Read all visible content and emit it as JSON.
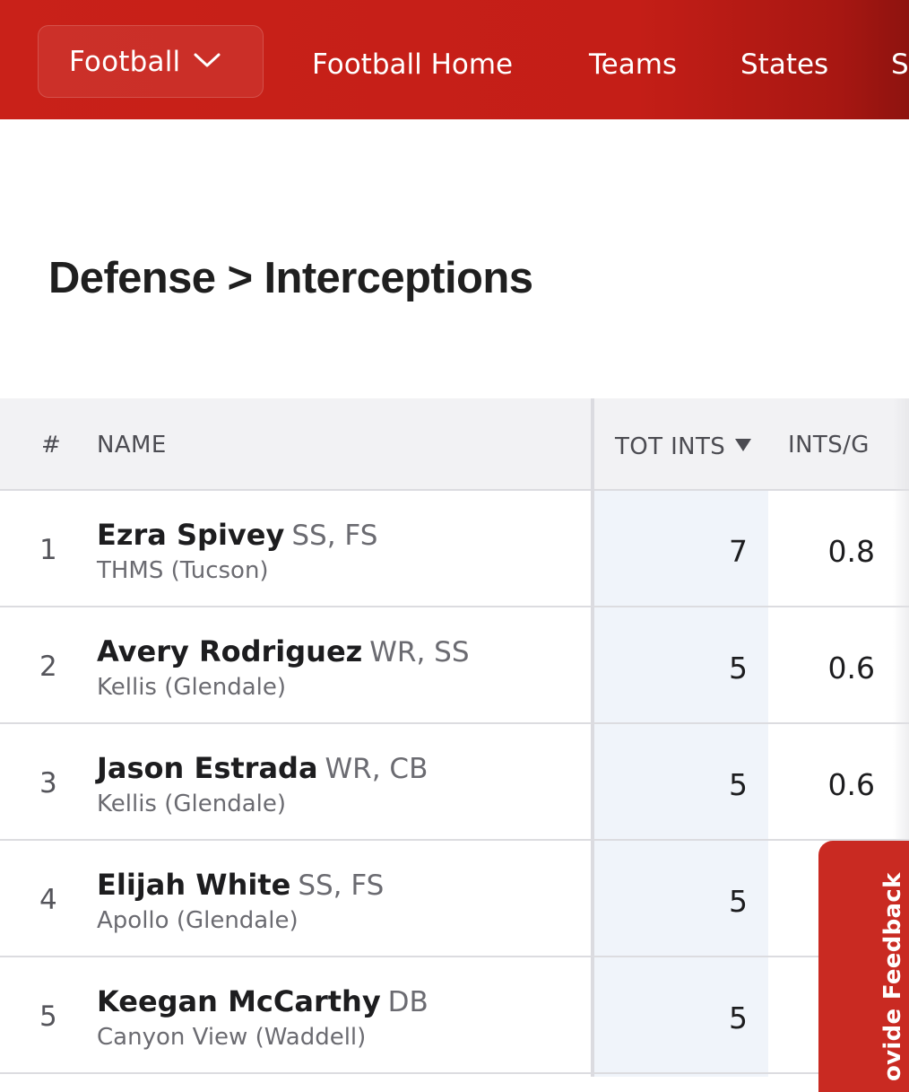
{
  "nav": {
    "sport_select": "Football",
    "links": [
      "Football Home",
      "Teams",
      "States",
      "S"
    ]
  },
  "page": {
    "title": "Defense > Interceptions"
  },
  "table": {
    "columns": {
      "rank": "#",
      "name": "NAME",
      "total_ints": "TOT INTS",
      "ints_per_game": "INTS/G"
    },
    "sort": {
      "column": "TOT INTS",
      "direction": "descending"
    },
    "rows": [
      {
        "rank": "1",
        "name": "Ezra Spivey",
        "positions": "SS, FS",
        "school": "THMS (Tucson)",
        "total_ints": "7",
        "ints_per_game": "0.8"
      },
      {
        "rank": "2",
        "name": "Avery Rodriguez",
        "positions": "WR, SS",
        "school": "Kellis (Glendale)",
        "total_ints": "5",
        "ints_per_game": "0.6"
      },
      {
        "rank": "3",
        "name": "Jason Estrada",
        "positions": "WR, CB",
        "school": "Kellis (Glendale)",
        "total_ints": "5",
        "ints_per_game": "0.6"
      },
      {
        "rank": "4",
        "name": "Elijah White",
        "positions": "SS, FS",
        "school": "Apollo (Glendale)",
        "total_ints": "5",
        "ints_per_game": ""
      },
      {
        "rank": "5",
        "name": "Keegan McCarthy",
        "positions": "DB",
        "school": "Canyon View (Waddell)",
        "total_ints": "5",
        "ints_per_game": ""
      }
    ]
  },
  "feedback": {
    "label": "ovide Feedback"
  },
  "colors": {
    "nav_red": "#c92119",
    "feedback_red": "#c92a22",
    "header_bg": "#f2f2f4",
    "sorted_column_bg": "#f0f4fa"
  },
  "icons": {
    "sport_select": "chevron-down-icon",
    "sort": "sort-descending-triangle-icon"
  }
}
